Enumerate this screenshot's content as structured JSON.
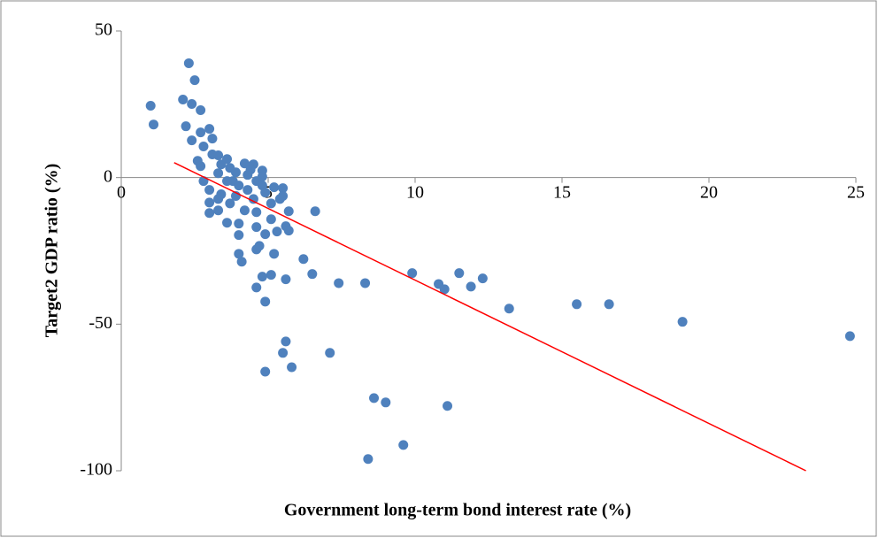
{
  "chart_data": {
    "type": "scatter",
    "x_label": "Government long-term bond interest rate (%)",
    "y_label": "Target2 GDP ratio (%)",
    "xlim": [
      0,
      25
    ],
    "xticks": [
      0,
      5,
      10,
      15,
      20,
      25
    ],
    "ylim": [
      -100,
      50
    ],
    "yticks": [
      -100,
      -50,
      0,
      50
    ],
    "series": [
      {
        "color": "#4f81bd",
        "x": [
          1.0,
          1.1,
          2.3,
          2.5,
          2.1,
          2.4,
          2.7,
          2.2,
          2.4,
          2.7,
          2.8,
          3.0,
          3.1,
          2.6,
          2.7,
          3.1,
          3.3,
          2.8,
          3.0,
          3.0,
          3.0,
          3.3,
          3.6,
          4.0,
          3.4,
          3.8,
          4.2,
          4.5,
          4.8,
          4.6,
          4.3,
          4.8,
          4.9,
          5.1,
          5.1,
          4.9,
          4.6,
          5.3,
          5.6,
          5.7,
          5.2,
          5.5,
          5.4,
          5.5,
          5.7,
          6.6,
          4.0,
          4.1,
          4.0,
          4.6,
          4.7,
          5.2,
          6.2,
          4.6,
          4.9,
          5.1,
          4.8,
          5.6,
          6.5,
          5.6,
          5.5,
          5.8,
          4.9,
          7.1,
          7.4,
          8.3,
          8.6,
          9.0,
          9.6,
          8.4,
          9.9,
          10.8,
          11.0,
          11.5,
          11.9,
          12.3,
          11.1,
          13.2,
          15.5,
          16.6,
          19.1,
          24.8,
          3.4,
          3.6,
          3.3,
          3.6,
          3.9,
          4.0,
          4.3,
          4.5,
          4.2,
          4.6,
          3.7,
          3.3,
          4.4,
          3.9,
          4.8,
          3.7
        ],
        "y": [
          24.5,
          18.1,
          39.0,
          33.2,
          26.6,
          25.1,
          23.0,
          17.5,
          12.7,
          15.4,
          10.6,
          16.6,
          13.3,
          5.7,
          3.9,
          7.9,
          7.6,
          -1.2,
          -4.2,
          -8.5,
          -12.1,
          -11.2,
          -15.4,
          -15.7,
          -5.7,
          -1.2,
          4.8,
          4.5,
          2.4,
          -1.2,
          -4.2,
          -2.7,
          -5.1,
          -8.8,
          -14.2,
          -19.3,
          -16.9,
          -18.4,
          -16.6,
          -18.1,
          -3.3,
          -3.6,
          -7.3,
          -6.3,
          -11.5,
          -11.5,
          -19.6,
          -28.7,
          -26.0,
          -24.5,
          -23.3,
          -26.0,
          -27.8,
          -37.5,
          -42.3,
          -33.2,
          -33.8,
          -34.7,
          -32.9,
          -55.9,
          -59.8,
          -64.7,
          -66.2,
          -59.8,
          -36.0,
          -36.0,
          -75.2,
          -76.7,
          -91.2,
          -96.0,
          -32.6,
          -36.3,
          -38.1,
          -32.6,
          -37.2,
          -34.4,
          -77.9,
          -44.7,
          -43.2,
          -43.2,
          -49.2,
          -54.1,
          4.5,
          6.3,
          1.5,
          -1.2,
          1.8,
          -2.7,
          0.9,
          -7.3,
          -11.2,
          -11.8,
          -8.8,
          -7.3,
          2.7,
          -6.3,
          0.3,
          3.3
        ]
      }
    ],
    "trendline": {
      "x": [
        1.8,
        23.3
      ],
      "y": [
        5.1,
        -100
      ],
      "color": "#ff0000"
    }
  }
}
